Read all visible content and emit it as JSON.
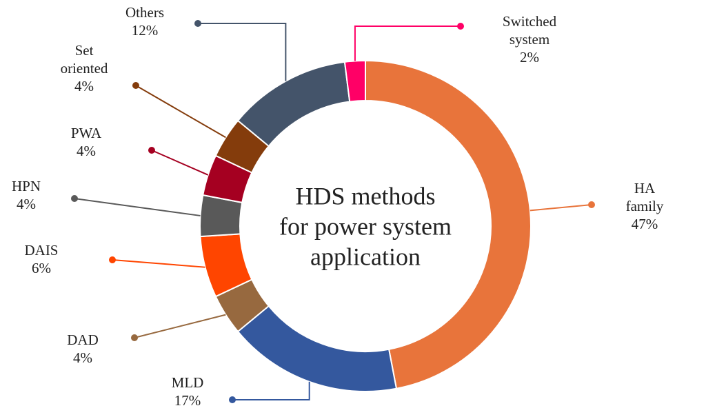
{
  "chart_data": {
    "type": "donut",
    "center_text": [
      "HDS methods",
      "for power system",
      "application"
    ],
    "categories": [
      "HA family",
      "MLD",
      "DAD",
      "DAIS",
      "HPN",
      "PWA",
      "Set oriented",
      "Others",
      "Switched system"
    ],
    "values": [
      47,
      17,
      4,
      6,
      4,
      4,
      4,
      12,
      2
    ],
    "value_labels": [
      "47%",
      "17%",
      "4%",
      "6%",
      "4%",
      "4%",
      "4%",
      "12%",
      "2%"
    ],
    "colors": [
      "#E8743B",
      "#34589E",
      "#97693F",
      "#FF4500",
      "#595959",
      "#A50021",
      "#843C0C",
      "#44546A",
      "#FF0066"
    ]
  }
}
